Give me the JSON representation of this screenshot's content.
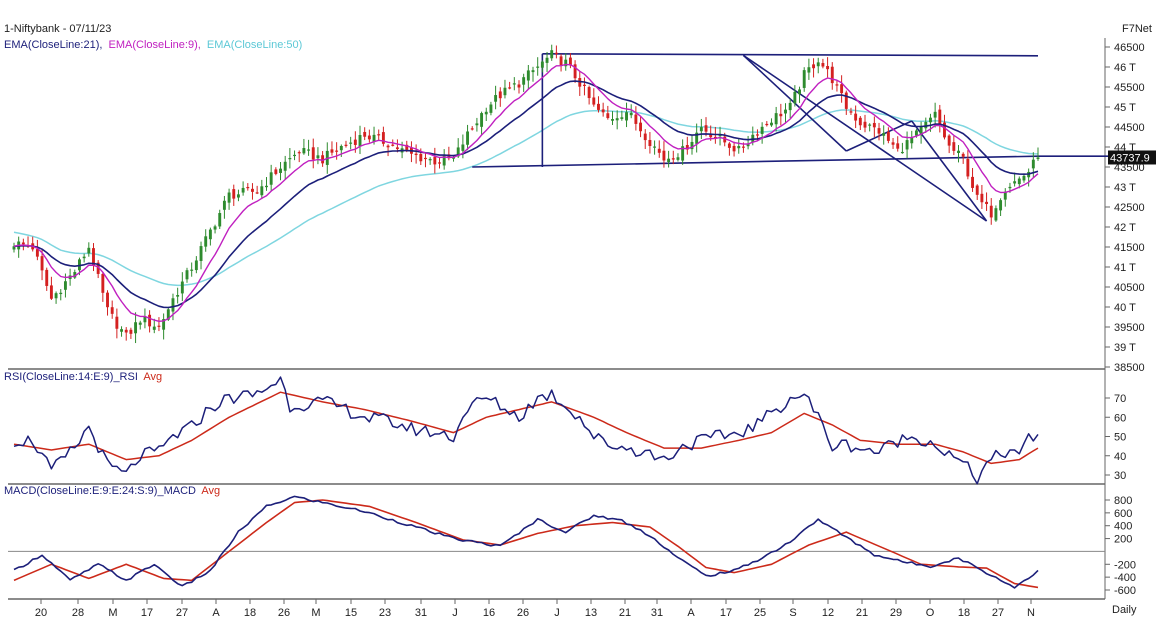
{
  "header": {
    "instrument": "1-Niftybank - 07/11/23",
    "ema_prefix": "EMA(CloseLine:21),",
    "ema9": "EMA(CloseLine:9),",
    "ema50": "EMA(CloseLine:50)",
    "brand": "F7Net",
    "price_tag": "43737.9",
    "rsi_title_a": "RSI(CloseLine:14:E:9)_RSI",
    "rsi_title_b": "Avg",
    "macd_title_a": "MACD(CloseLine:E:9:E:24:S:9)_MACD",
    "macd_title_b": "Avg",
    "period": "Daily"
  },
  "colors": {
    "up": "#2e8b2e",
    "down": "#d42020",
    "ema21": "#1c1f7a",
    "ema9": "#c020c0",
    "ema50": "#7fd6e0",
    "trend": "#1c1f7a",
    "rsi": "#1c1f7a",
    "avg": "#cc2a1a",
    "grid": "#666666"
  },
  "chart_data": [
    {
      "type": "candlestick",
      "title": "1-Niftybank - 07/11/23",
      "series_names": [
        "EMA(CloseLine:21)",
        "EMA(CloseLine:9)",
        "EMA(CloseLine:50)"
      ],
      "y_ticks": [
        "46500",
        "46 T",
        "45500",
        "45 T",
        "44500",
        "44 T",
        "43500",
        "43 T",
        "42500",
        "42 T",
        "41500",
        "41 T",
        "40500",
        "40 T",
        "39500",
        "39 T",
        "38500"
      ],
      "ylim": [
        38500,
        46500
      ],
      "last_price": 43737.9,
      "x_ticks": [
        "20",
        "28",
        "M",
        "17",
        "27",
        "A",
        "18",
        "26",
        "M",
        "15",
        "23",
        "31",
        "J",
        "16",
        "26",
        "J",
        "13",
        "21",
        "31",
        "A",
        "17",
        "25",
        "S",
        "12",
        "21",
        "29",
        "O",
        "18",
        "27",
        "N"
      ],
      "close_anchors": [
        [
          0,
          41600
        ],
        [
          4,
          41500
        ],
        [
          8,
          40200
        ],
        [
          13,
          40900
        ],
        [
          16,
          41500
        ],
        [
          20,
          39900
        ],
        [
          24,
          39250
        ],
        [
          27,
          39700
        ],
        [
          31,
          39500
        ],
        [
          34,
          40200
        ],
        [
          38,
          41000
        ],
        [
          42,
          41900
        ],
        [
          46,
          42800
        ],
        [
          52,
          42900
        ],
        [
          57,
          43500
        ],
        [
          61,
          43900
        ],
        [
          66,
          43700
        ],
        [
          70,
          44000
        ],
        [
          75,
          44300
        ],
        [
          80,
          44100
        ],
        [
          85,
          43800
        ],
        [
          90,
          43650
        ],
        [
          94,
          43700
        ],
        [
          97,
          44300
        ],
        [
          101,
          45000
        ],
        [
          104,
          45300
        ],
        [
          108,
          45600
        ],
        [
          112,
          46000
        ],
        [
          115,
          46300
        ],
        [
          118,
          46100
        ],
        [
          121,
          45600
        ],
        [
          124,
          45000
        ],
        [
          127,
          44700
        ],
        [
          131,
          44900
        ],
        [
          135,
          44300
        ],
        [
          139,
          43700
        ],
        [
          143,
          43900
        ],
        [
          147,
          44500
        ],
        [
          151,
          44200
        ],
        [
          155,
          43900
        ],
        [
          158,
          44300
        ],
        [
          162,
          44700
        ],
        [
          166,
          45000
        ],
        [
          169,
          45800
        ],
        [
          172,
          46200
        ],
        [
          175,
          45700
        ],
        [
          178,
          45000
        ],
        [
          181,
          44600
        ],
        [
          185,
          44400
        ],
        [
          189,
          43900
        ],
        [
          193,
          44300
        ],
        [
          197,
          44800
        ],
        [
          200,
          44000
        ],
        [
          203,
          43700
        ],
        [
          206,
          42700
        ],
        [
          209,
          42350
        ],
        [
          212,
          43000
        ],
        [
          215,
          43200
        ],
        [
          217,
          43400
        ],
        [
          219,
          43738
        ]
      ],
      "rsi": {
        "y_ticks": [
          "70",
          "60",
          "50",
          "40",
          "30"
        ],
        "ylim": [
          25,
          78
        ],
        "rsi_anchors": [
          [
            0,
            48
          ],
          [
            4,
            48
          ],
          [
            8,
            32
          ],
          [
            13,
            44
          ],
          [
            16,
            55
          ],
          [
            20,
            35
          ],
          [
            24,
            30
          ],
          [
            27,
            40
          ],
          [
            31,
            42
          ],
          [
            34,
            50
          ],
          [
            38,
            55
          ],
          [
            42,
            65
          ],
          [
            46,
            70
          ],
          [
            52,
            72
          ],
          [
            57,
            80
          ],
          [
            59,
            66
          ],
          [
            66,
            68
          ],
          [
            70,
            65
          ],
          [
            75,
            60
          ],
          [
            80,
            58
          ],
          [
            85,
            54
          ],
          [
            90,
            52
          ],
          [
            94,
            50
          ],
          [
            97,
            65
          ],
          [
            101,
            70
          ],
          [
            104,
            66
          ],
          [
            108,
            60
          ],
          [
            112,
            70
          ],
          [
            115,
            72
          ],
          [
            118,
            66
          ],
          [
            121,
            60
          ],
          [
            124,
            50
          ],
          [
            127,
            46
          ],
          [
            131,
            44
          ],
          [
            135,
            42
          ],
          [
            139,
            38
          ],
          [
            143,
            45
          ],
          [
            147,
            48
          ],
          [
            151,
            50
          ],
          [
            155,
            52
          ],
          [
            158,
            55
          ],
          [
            162,
            62
          ],
          [
            166,
            70
          ],
          [
            169,
            72
          ],
          [
            172,
            60
          ],
          [
            175,
            45
          ],
          [
            178,
            46
          ],
          [
            181,
            44
          ],
          [
            185,
            42
          ],
          [
            189,
            48
          ],
          [
            193,
            50
          ],
          [
            197,
            46
          ],
          [
            200,
            40
          ],
          [
            203,
            36
          ],
          [
            206,
            28
          ],
          [
            209,
            40
          ],
          [
            212,
            38
          ],
          [
            215,
            44
          ],
          [
            217,
            48
          ],
          [
            219,
            52
          ]
        ],
        "avg_anchors": [
          [
            0,
            46
          ],
          [
            8,
            43
          ],
          [
            16,
            46
          ],
          [
            24,
            38
          ],
          [
            31,
            40
          ],
          [
            38,
            48
          ],
          [
            46,
            60
          ],
          [
            57,
            73
          ],
          [
            66,
            68
          ],
          [
            75,
            64
          ],
          [
            85,
            58
          ],
          [
            94,
            52
          ],
          [
            101,
            60
          ],
          [
            108,
            64
          ],
          [
            115,
            68
          ],
          [
            124,
            60
          ],
          [
            131,
            52
          ],
          [
            139,
            44
          ],
          [
            147,
            44
          ],
          [
            155,
            48
          ],
          [
            162,
            52
          ],
          [
            169,
            62
          ],
          [
            175,
            56
          ],
          [
            181,
            48
          ],
          [
            189,
            46
          ],
          [
            197,
            46
          ],
          [
            203,
            42
          ],
          [
            209,
            36
          ],
          [
            215,
            38
          ],
          [
            219,
            44
          ]
        ]
      },
      "macd": {
        "y_ticks": [
          "800",
          "600",
          "400",
          "200",
          "-200",
          "-400",
          "-600"
        ],
        "ylim": [
          -700,
          950
        ],
        "macd_anchors": [
          [
            0,
            -300
          ],
          [
            6,
            -50
          ],
          [
            12,
            -450
          ],
          [
            18,
            -200
          ],
          [
            24,
            -450
          ],
          [
            30,
            -200
          ],
          [
            36,
            -550
          ],
          [
            42,
            -300
          ],
          [
            48,
            300
          ],
          [
            54,
            700
          ],
          [
            60,
            850
          ],
          [
            66,
            760
          ],
          [
            75,
            620
          ],
          [
            85,
            400
          ],
          [
            94,
            200
          ],
          [
            104,
            80
          ],
          [
            112,
            500
          ],
          [
            118,
            300
          ],
          [
            124,
            560
          ],
          [
            130,
            480
          ],
          [
            136,
            250
          ],
          [
            142,
            -100
          ],
          [
            148,
            -380
          ],
          [
            154,
            -300
          ],
          [
            160,
            -100
          ],
          [
            166,
            150
          ],
          [
            172,
            500
          ],
          [
            178,
            220
          ],
          [
            184,
            -50
          ],
          [
            190,
            -160
          ],
          [
            196,
            -230
          ],
          [
            202,
            -100
          ],
          [
            208,
            -330
          ],
          [
            214,
            -560
          ],
          [
            219,
            -300
          ]
        ],
        "avg_anchors": [
          [
            0,
            -450
          ],
          [
            8,
            -200
          ],
          [
            16,
            -420
          ],
          [
            24,
            -200
          ],
          [
            32,
            -420
          ],
          [
            38,
            -450
          ],
          [
            46,
            0
          ],
          [
            54,
            450
          ],
          [
            60,
            760
          ],
          [
            66,
            800
          ],
          [
            76,
            700
          ],
          [
            86,
            450
          ],
          [
            96,
            180
          ],
          [
            104,
            100
          ],
          [
            112,
            280
          ],
          [
            120,
            400
          ],
          [
            128,
            450
          ],
          [
            136,
            380
          ],
          [
            142,
            80
          ],
          [
            148,
            -250
          ],
          [
            154,
            -330
          ],
          [
            162,
            -200
          ],
          [
            170,
            100
          ],
          [
            178,
            300
          ],
          [
            186,
            50
          ],
          [
            194,
            -200
          ],
          [
            202,
            -240
          ],
          [
            208,
            -260
          ],
          [
            214,
            -500
          ],
          [
            219,
            -560
          ]
        ]
      }
    }
  ]
}
